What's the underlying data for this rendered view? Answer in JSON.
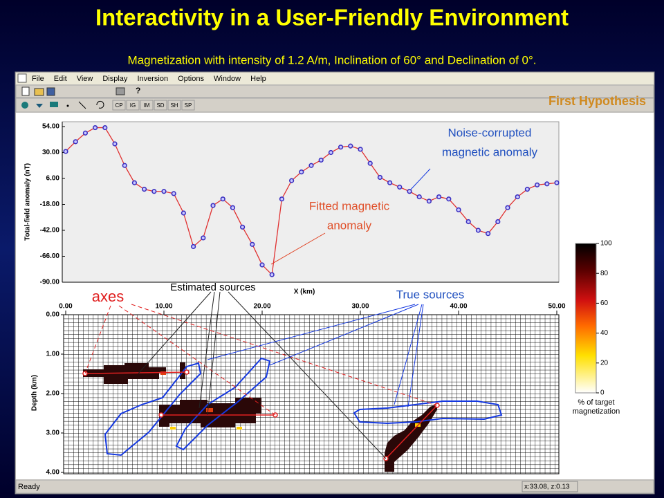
{
  "title": "Interactivity in a User-Friendly Environment",
  "subtitle": "Magnetization with intensity of 1.2 A/m, Inclination of 60° and Declination of 0°.",
  "window": {
    "menu": [
      "File",
      "Edit",
      "View",
      "Display",
      "Inversion",
      "Options",
      "Window",
      "Help"
    ],
    "toolbar": [
      "CP",
      "IG",
      "IM",
      "SD",
      "SH",
      "SP"
    ],
    "hypothesis": "First Hypothesis",
    "status": [
      "Ready",
      "x:33.08, z:0.13"
    ]
  },
  "annotations": {
    "noise": [
      "Noise-corrupted",
      "magnetic anomaly"
    ],
    "fitted": [
      "Fitted magnetic",
      "anomaly"
    ],
    "estimated": "Estimated sources",
    "true": "True sources",
    "axes": "axes"
  },
  "chart_data": [
    {
      "type": "line",
      "ylabel": "Total-field anomaly (nT)",
      "xlabel": "X (km)",
      "x": [
        0,
        1,
        2,
        3,
        4,
        5,
        6,
        7,
        8,
        9,
        10,
        11,
        12,
        13,
        14,
        15,
        16,
        17,
        18,
        19,
        20,
        21,
        22,
        23,
        24,
        25,
        26,
        27,
        28,
        29,
        30,
        31,
        32,
        33,
        34,
        35,
        36,
        37,
        38,
        39,
        40,
        41,
        42,
        43,
        44,
        45,
        46,
        47,
        48,
        49,
        50
      ],
      "series": [
        {
          "color": "#3a2fc0",
          "values": [
            31,
            40,
            48,
            53,
            53,
            38,
            18,
            2,
            -4,
            -6,
            -6,
            -8,
            -26,
            -57,
            -49,
            -19,
            -13,
            -21,
            -39,
            -55,
            -74,
            -83,
            -13,
            4,
            12,
            18,
            23,
            30,
            35,
            36,
            33,
            20,
            7,
            2,
            -2,
            -6,
            -11,
            -15,
            -11,
            -13,
            -23,
            -34,
            -42,
            -45,
            -34,
            -21,
            -11,
            -4,
            0,
            1,
            2
          ]
        },
        {
          "color": "#e03030",
          "values": [
            31,
            40,
            48,
            53,
            53,
            38,
            18,
            2,
            -4,
            -6,
            -6,
            -8,
            -26,
            -57,
            -49,
            -19,
            -13,
            -21,
            -39,
            -55,
            -74,
            -83,
            -13,
            4,
            12,
            18,
            23,
            30,
            35,
            36,
            33,
            20,
            7,
            2,
            -2,
            -6,
            -11,
            -15,
            -11,
            -13,
            -23,
            -34,
            -42,
            -45,
            -34,
            -21,
            -11,
            -4,
            0,
            1,
            2
          ]
        }
      ],
      "xlim": [
        0,
        50
      ],
      "ylim": [
        -90,
        54
      ],
      "yticks": [
        {
          "value": 54,
          "label": "54.00"
        },
        {
          "value": 30,
          "label": "30.00"
        },
        {
          "value": 6,
          "label": "6.00"
        },
        {
          "value": -18,
          "label": "-18.00"
        },
        {
          "value": -42,
          "label": "-42.00"
        },
        {
          "value": -66,
          "label": "-66.00"
        },
        {
          "value": -90,
          "label": "-90.00"
        }
      ]
    },
    {
      "type": "heatmap",
      "ylabel": "Depth (km)",
      "xlim": [
        0,
        50
      ],
      "ylim": [
        4,
        0
      ],
      "xticks": [
        {
          "value": 0,
          "label": "0.00"
        },
        {
          "value": 10,
          "label": "10.00"
        },
        {
          "value": 20,
          "label": "20.00"
        },
        {
          "value": 30,
          "label": "30.00"
        },
        {
          "value": 40,
          "label": "40.00"
        },
        {
          "value": 50,
          "label": "50.00"
        }
      ],
      "yticks": [
        {
          "value": 0,
          "label": "0.00"
        },
        {
          "value": 1,
          "label": "1.00"
        },
        {
          "value": 2,
          "label": "2.00"
        },
        {
          "value": 3,
          "label": "3.00"
        },
        {
          "value": 4,
          "label": "4.00"
        }
      ]
    },
    {
      "type": "colorbar",
      "label": [
        "% of target",
        "magnetization"
      ],
      "ylim": [
        0,
        100
      ],
      "yticks": [
        100,
        80,
        60,
        40,
        20,
        0
      ]
    }
  ]
}
